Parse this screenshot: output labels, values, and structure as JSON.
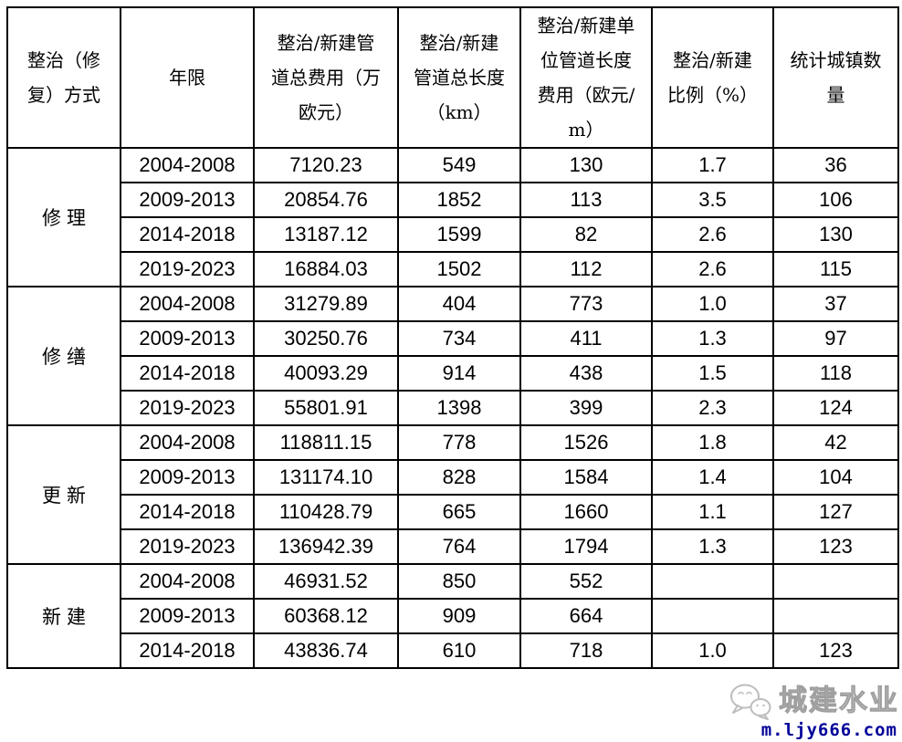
{
  "table": {
    "columns": [
      "整治（修复）方式",
      "年限",
      "整治/新建管道总费用（万欧元）",
      "整治/新建管道总长度（km）",
      "整治/新建单位管道长度费用（欧元/m）",
      "整治/新建比例（%）",
      "统计城镇数量"
    ],
    "groups": [
      {
        "method": "修理",
        "rows": [
          [
            "2004-2008",
            "7120.23",
            "549",
            "130",
            "1.7",
            "36"
          ],
          [
            "2009-2013",
            "20854.76",
            "1852",
            "113",
            "3.5",
            "106"
          ],
          [
            "2014-2018",
            "13187.12",
            "1599",
            "82",
            "2.6",
            "130"
          ],
          [
            "2019-2023",
            "16884.03",
            "1502",
            "112",
            "2.6",
            "115"
          ]
        ]
      },
      {
        "method": "修缮",
        "rows": [
          [
            "2004-2008",
            "31279.89",
            "404",
            "773",
            "1.0",
            "37"
          ],
          [
            "2009-2013",
            "30250.76",
            "734",
            "411",
            "1.3",
            "97"
          ],
          [
            "2014-2018",
            "40093.29",
            "914",
            "438",
            "1.5",
            "118"
          ],
          [
            "2019-2023",
            "55801.91",
            "1398",
            "399",
            "2.3",
            "124"
          ]
        ]
      },
      {
        "method": "更新",
        "rows": [
          [
            "2004-2008",
            "118811.15",
            "778",
            "1526",
            "1.8",
            "42"
          ],
          [
            "2009-2013",
            "131174.10",
            "828",
            "1584",
            "1.4",
            "104"
          ],
          [
            "2014-2018",
            "110428.79",
            "665",
            "1660",
            "1.1",
            "127"
          ],
          [
            "2019-2023",
            "136942.39",
            "764",
            "1794",
            "1.3",
            "123"
          ]
        ]
      },
      {
        "method": "新建",
        "rows": [
          [
            "2004-2008",
            "46931.52",
            "850",
            "552",
            "",
            ""
          ],
          [
            "2009-2013",
            "60368.12",
            "909",
            "664",
            "",
            ""
          ],
          [
            "2014-2018",
            "43836.74",
            "610",
            "718",
            "1.0",
            "123"
          ]
        ]
      }
    ]
  },
  "watermark": {
    "icon": "wechat-icon",
    "brand": "城建水业",
    "url": "m.ljy666.com",
    "brand_color": "#9f9f9f",
    "url_color": "#000099"
  }
}
